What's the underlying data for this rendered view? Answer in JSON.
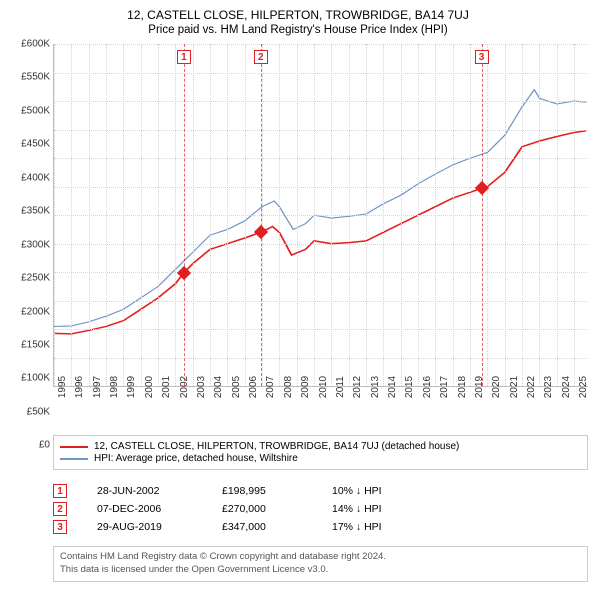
{
  "title": "12, CASTELL CLOSE, HILPERTON, TROWBRIDGE, BA14 7UJ",
  "subtitle": "Price paid vs. HM Land Registry's House Price Index (HPI)",
  "chart": {
    "type": "line",
    "background_color": "#ffffff",
    "grid_color": "#d4d4d4",
    "axis_color": "#bdbdbd",
    "font_size_axis": 10,
    "y": {
      "min": 0,
      "max": 600000,
      "step": 50000,
      "ticks": [
        "£0",
        "£50K",
        "£100K",
        "£150K",
        "£200K",
        "£250K",
        "£300K",
        "£350K",
        "£400K",
        "£450K",
        "£500K",
        "£550K",
        "£600K"
      ]
    },
    "x": {
      "min": 1995,
      "max": 2025.8,
      "step": 1,
      "ticks": [
        "1995",
        "1996",
        "1997",
        "1998",
        "1999",
        "2000",
        "2001",
        "2002",
        "2003",
        "2004",
        "2005",
        "2006",
        "2007",
        "2008",
        "2009",
        "2010",
        "2011",
        "2012",
        "2013",
        "2014",
        "2015",
        "2016",
        "2017",
        "2018",
        "2019",
        "2020",
        "2021",
        "2022",
        "2023",
        "2024",
        "2025"
      ]
    },
    "series": [
      {
        "name": "property",
        "label": "12, CASTELL CLOSE, HILPERTON, TROWBRIDGE, BA14 7UJ (detached house)",
        "color": "#e02020",
        "width": 1.8,
        "points": [
          [
            1995,
            93000
          ],
          [
            1996,
            92000
          ],
          [
            1997,
            98000
          ],
          [
            1998,
            105000
          ],
          [
            1999,
            115000
          ],
          [
            2000,
            135000
          ],
          [
            2001,
            155000
          ],
          [
            2002,
            180000
          ],
          [
            2002.49,
            198995
          ],
          [
            2003,
            215000
          ],
          [
            2004,
            240000
          ],
          [
            2005,
            250000
          ],
          [
            2006,
            260000
          ],
          [
            2006.93,
            270000
          ],
          [
            2007.6,
            280000
          ],
          [
            2008,
            270000
          ],
          [
            2008.7,
            230000
          ],
          [
            2009.5,
            240000
          ],
          [
            2010,
            255000
          ],
          [
            2011,
            250000
          ],
          [
            2012,
            252000
          ],
          [
            2013,
            255000
          ],
          [
            2014,
            270000
          ],
          [
            2015,
            285000
          ],
          [
            2016,
            300000
          ],
          [
            2017,
            315000
          ],
          [
            2018,
            330000
          ],
          [
            2019,
            340000
          ],
          [
            2019.66,
            347000
          ],
          [
            2020,
            350000
          ],
          [
            2021,
            375000
          ],
          [
            2022,
            420000
          ],
          [
            2023,
            430000
          ],
          [
            2024,
            438000
          ],
          [
            2025,
            445000
          ],
          [
            2025.7,
            448000
          ]
        ]
      },
      {
        "name": "hpi",
        "label": "HPI: Average price, detached house, Wiltshire",
        "color": "#6e94c4",
        "width": 1.3,
        "points": [
          [
            1995,
            105000
          ],
          [
            1996,
            106000
          ],
          [
            1997,
            113000
          ],
          [
            1998,
            123000
          ],
          [
            1999,
            135000
          ],
          [
            2000,
            155000
          ],
          [
            2001,
            175000
          ],
          [
            2002,
            205000
          ],
          [
            2003,
            235000
          ],
          [
            2004,
            265000
          ],
          [
            2005,
            275000
          ],
          [
            2006,
            290000
          ],
          [
            2007,
            315000
          ],
          [
            2007.7,
            325000
          ],
          [
            2008,
            315000
          ],
          [
            2008.8,
            275000
          ],
          [
            2009.5,
            285000
          ],
          [
            2010,
            300000
          ],
          [
            2011,
            295000
          ],
          [
            2012,
            298000
          ],
          [
            2013,
            302000
          ],
          [
            2014,
            320000
          ],
          [
            2015,
            335000
          ],
          [
            2016,
            355000
          ],
          [
            2017,
            372000
          ],
          [
            2018,
            388000
          ],
          [
            2019,
            400000
          ],
          [
            2020,
            410000
          ],
          [
            2021,
            440000
          ],
          [
            2022,
            490000
          ],
          [
            2022.7,
            520000
          ],
          [
            2023,
            505000
          ],
          [
            2024,
            495000
          ],
          [
            2025,
            500000
          ],
          [
            2025.7,
            498000
          ]
        ]
      }
    ],
    "events": [
      {
        "n": "1",
        "year": 2002.49,
        "date": "28-JUN-2002",
        "price": "£198,995",
        "price_val": 198995,
        "diff": "10% ↓ HPI"
      },
      {
        "n": "2",
        "year": 2006.93,
        "date": "07-DEC-2006",
        "price": "£270,000",
        "price_val": 270000,
        "diff": "14% ↓ HPI"
      },
      {
        "n": "3",
        "year": 2019.66,
        "date": "29-AUG-2019",
        "price": "£347,000",
        "price_val": 347000,
        "diff": "17% ↓ HPI"
      }
    ],
    "event_color": "#e02020"
  },
  "legend": {
    "border_color": "#cccccc"
  },
  "attribution": {
    "line1": "Contains HM Land Registry data © Crown copyright and database right 2024.",
    "line2": "This data is licensed under the Open Government Licence v3.0."
  }
}
